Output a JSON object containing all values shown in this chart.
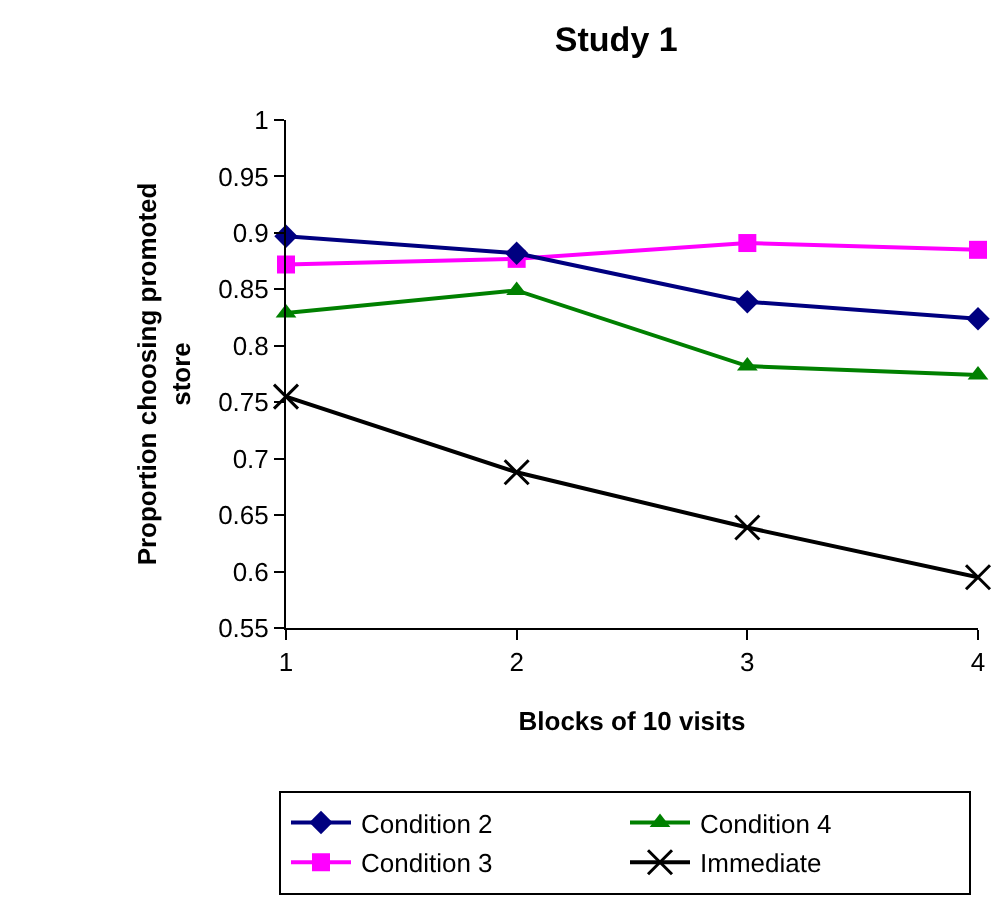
{
  "chart_data": {
    "type": "line",
    "title": "Study 1",
    "xlabel": "Blocks of 10 visits",
    "ylabel": "Proportion choosing promoted store",
    "x": [
      1,
      2,
      3,
      4
    ],
    "series": [
      {
        "name": "Condition 2",
        "color": "#000080",
        "marker": "diamond",
        "values": [
          0.897,
          0.882,
          0.839,
          0.824
        ]
      },
      {
        "name": "Condition 4",
        "color": "#008000",
        "marker": "triangle",
        "values": [
          0.829,
          0.849,
          0.782,
          0.774
        ]
      },
      {
        "name": "Condition 3",
        "color": "#ff00ff",
        "marker": "square",
        "values": [
          0.872,
          0.877,
          0.891,
          0.885
        ]
      },
      {
        "name": "Immediate",
        "color": "#000000",
        "marker": "cross",
        "values": [
          0.755,
          0.688,
          0.639,
          0.595
        ]
      }
    ],
    "xlim": [
      1,
      4
    ],
    "xticks": [
      1,
      2,
      3,
      4
    ],
    "ylim": [
      0.55,
      1
    ],
    "yticks": [
      0.55,
      0.6,
      0.65,
      0.7,
      0.75,
      0.8,
      0.85,
      0.9,
      0.95,
      1
    ],
    "grid": false,
    "legend": "bottom",
    "line_style": "solid"
  }
}
